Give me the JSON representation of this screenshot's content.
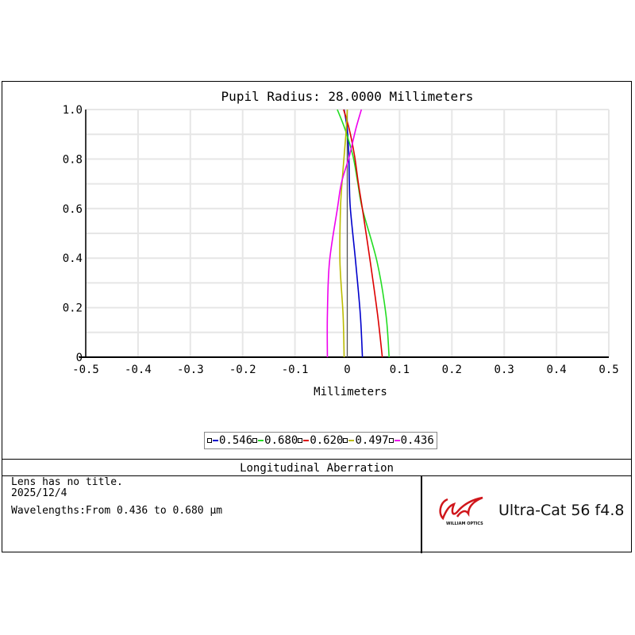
{
  "chart_data": {
    "type": "line",
    "title": "Pupil Radius: 28.0000 Millimeters",
    "xlabel": "Millimeters",
    "ylabel": "",
    "xlim": [
      -0.5,
      0.5
    ],
    "ylim": [
      0,
      1.0
    ],
    "xticks": [
      "-0.5",
      "-0.4",
      "-0.3",
      "-0.2",
      "-0.1",
      "0",
      "0.1",
      "0.2",
      "0.3",
      "0.4",
      "0.5"
    ],
    "yticks": [
      "0",
      "0.2",
      "0.4",
      "0.6",
      "0.8",
      "1.0"
    ],
    "grid": true,
    "legend_placement": "bottom-center",
    "pupil": [
      0,
      0.171,
      0.385,
      0.598,
      0.705,
      0.812,
      0.919,
      1.0
    ],
    "series": [
      {
        "name": "0.546",
        "color": "#0000cc",
        "x": [
          0.029,
          0.025,
          0.016,
          0.006,
          0.004,
          0.003,
          0.0,
          -0.006
        ]
      },
      {
        "name": "0.680",
        "color": "#22dd22",
        "x": [
          0.08,
          0.074,
          0.057,
          0.029,
          0.02,
          0.011,
          -0.004,
          -0.019
        ]
      },
      {
        "name": "0.620",
        "color": "#dd0000",
        "x": [
          0.067,
          0.058,
          0.044,
          0.029,
          0.021,
          0.014,
          0.004,
          -0.007
        ]
      },
      {
        "name": "0.497",
        "color": "#bbbb00",
        "x": [
          -0.006,
          -0.008,
          -0.014,
          -0.013,
          -0.01,
          -0.006,
          -0.002,
          0.0
        ]
      },
      {
        "name": "0.436",
        "color": "#ee00ee",
        "x": [
          -0.038,
          -0.038,
          -0.034,
          -0.019,
          -0.011,
          0.004,
          0.016,
          0.027
        ]
      }
    ]
  },
  "footer": {
    "title": "Longitudinal Aberration",
    "lens_title": "Lens has no title.",
    "date": "2025/12/4",
    "wavelengths": "Wavelengths:From 0.436 to 0.680 µm",
    "logo_text": "WILLIAM OPTICS",
    "model": "Ultra-Cat 56 f4.8"
  }
}
